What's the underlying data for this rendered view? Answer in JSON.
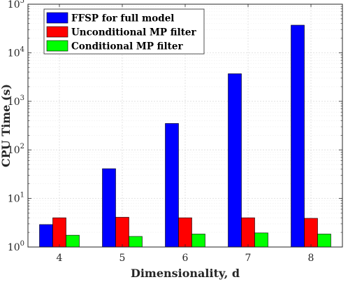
{
  "chart_data": {
    "type": "bar",
    "xlabel": "Dimensionality, d",
    "ylabel": "CPU Time (s)",
    "yscale": "log",
    "ylim": [
      1,
      100000
    ],
    "grid": true,
    "legend_position": "top-left",
    "categories": [
      "4",
      "5",
      "6",
      "7",
      "8"
    ],
    "series": [
      {
        "name": "FFSP for full model",
        "color": "#0000ff",
        "values": [
          2.9,
          41,
          350,
          3700,
          37000
        ]
      },
      {
        "name": "Unconditional MP filter",
        "color": "#ff0000",
        "values": [
          4.0,
          4.1,
          4.0,
          4.0,
          3.9
        ]
      },
      {
        "name": "Conditional MP filter",
        "color": "#00ff00",
        "values": [
          1.75,
          1.65,
          1.85,
          1.95,
          1.85
        ]
      }
    ],
    "ytick_labels": [
      {
        "base": "10",
        "exp": "0"
      },
      {
        "base": "10",
        "exp": "1"
      },
      {
        "base": "10",
        "exp": "2"
      },
      {
        "base": "10",
        "exp": "3"
      },
      {
        "base": "10",
        "exp": "4"
      },
      {
        "base": "10",
        "exp": "5"
      }
    ]
  }
}
